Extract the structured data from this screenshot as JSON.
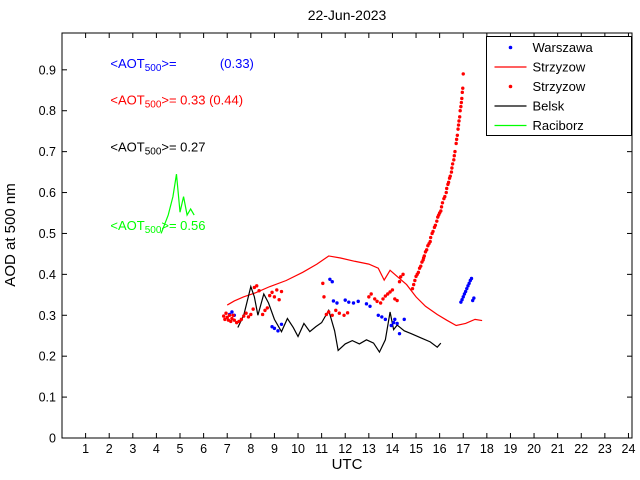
{
  "chart_data": {
    "type": "mixed",
    "title": "22-Jun-2023",
    "xlabel": "UTC",
    "ylabel": "AOD at 500 nm",
    "xlim": [
      0,
      24.15
    ],
    "ylim": [
      0,
      0.99
    ],
    "xticks": [
      1,
      2,
      3,
      4,
      5,
      6,
      7,
      8,
      9,
      10,
      11,
      12,
      13,
      14,
      15,
      16,
      17,
      18,
      19,
      20,
      21,
      22,
      23,
      24
    ],
    "yticks": [
      0,
      0.1,
      0.2,
      0.3,
      0.4,
      0.5,
      0.6,
      0.7,
      0.8,
      0.9
    ],
    "grid": false,
    "background": "#ffffff",
    "legend": {
      "position": "top-right",
      "entries": [
        {
          "label": "Warszawa",
          "style": "scatter",
          "color": "#0000ff"
        },
        {
          "label": "Strzyzow",
          "style": "line",
          "color": "#ff0000"
        },
        {
          "label": "Strzyzow",
          "style": "scatter",
          "color": "#ff0000"
        },
        {
          "label": "Belsk",
          "style": "line",
          "color": "#000000"
        },
        {
          "label": "Raciborz",
          "style": "line",
          "color": "#00ff00"
        }
      ]
    },
    "annotations": [
      {
        "name": "warszawa-mean",
        "color": "#0000ff",
        "x": 2.05,
        "y": 0.905,
        "pre": "<AOT",
        "sub": "500",
        "post": ">=            (0.33)"
      },
      {
        "name": "strzyzow-mean",
        "color": "#ff0000",
        "x": 2.05,
        "y": 0.815,
        "pre": "<AOT",
        "sub": "500",
        "post": ">= 0.33 (0.44)"
      },
      {
        "name": "belsk-mean",
        "color": "#000000",
        "x": 2.05,
        "y": 0.7,
        "pre": "<AOT",
        "sub": "500",
        "post": ">= 0.27"
      },
      {
        "name": "raciborz-mean",
        "color": "#00ff00",
        "x": 2.05,
        "y": 0.508,
        "pre": "<AOT",
        "sub": "500",
        "post": ">= 0.56"
      }
    ],
    "series": [
      {
        "name": "Raciborz",
        "type": "line",
        "color": "#00ff00",
        "points": [
          [
            4.2,
            0.5
          ],
          [
            4.5,
            0.545
          ],
          [
            4.7,
            0.59
          ],
          [
            4.85,
            0.645
          ],
          [
            5.0,
            0.552
          ],
          [
            5.15,
            0.59
          ],
          [
            5.3,
            0.545
          ],
          [
            5.45,
            0.56
          ],
          [
            5.6,
            0.545
          ]
        ]
      },
      {
        "name": "Strzyzow",
        "type": "line",
        "color": "#ff0000",
        "points": [
          [
            7.0,
            0.325
          ],
          [
            7.3,
            0.335
          ],
          [
            7.7,
            0.345
          ],
          [
            8.2,
            0.355
          ],
          [
            8.8,
            0.37
          ],
          [
            9.5,
            0.385
          ],
          [
            10.2,
            0.405
          ],
          [
            10.8,
            0.425
          ],
          [
            11.3,
            0.445
          ],
          [
            11.8,
            0.44
          ],
          [
            12.4,
            0.432
          ],
          [
            13.0,
            0.425
          ],
          [
            13.4,
            0.415
          ],
          [
            13.65,
            0.386
          ],
          [
            13.9,
            0.41
          ],
          [
            14.2,
            0.395
          ],
          [
            14.6,
            0.375
          ],
          [
            15.0,
            0.345
          ],
          [
            15.4,
            0.322
          ],
          [
            15.9,
            0.302
          ],
          [
            16.3,
            0.288
          ],
          [
            16.7,
            0.275
          ],
          [
            17.1,
            0.28
          ],
          [
            17.5,
            0.29
          ],
          [
            17.8,
            0.287
          ]
        ]
      },
      {
        "name": "Belsk",
        "type": "line",
        "color": "#000000",
        "points": [
          [
            7.45,
            0.27
          ],
          [
            7.7,
            0.3
          ],
          [
            8.0,
            0.37
          ],
          [
            8.15,
            0.345
          ],
          [
            8.3,
            0.3
          ],
          [
            8.55,
            0.352
          ],
          [
            8.75,
            0.33
          ],
          [
            9.0,
            0.29
          ],
          [
            9.3,
            0.26
          ],
          [
            9.55,
            0.292
          ],
          [
            9.8,
            0.27
          ],
          [
            10.0,
            0.248
          ],
          [
            10.25,
            0.28
          ],
          [
            10.5,
            0.26
          ],
          [
            10.75,
            0.272
          ],
          [
            11.0,
            0.282
          ],
          [
            11.3,
            0.312
          ],
          [
            11.55,
            0.262
          ],
          [
            11.7,
            0.214
          ],
          [
            12.0,
            0.23
          ],
          [
            12.3,
            0.238
          ],
          [
            12.6,
            0.23
          ],
          [
            12.9,
            0.24
          ],
          [
            13.2,
            0.232
          ],
          [
            13.45,
            0.21
          ],
          [
            13.7,
            0.24
          ],
          [
            13.9,
            0.308
          ],
          [
            14.05,
            0.265
          ],
          [
            14.2,
            0.276
          ],
          [
            14.5,
            0.262
          ],
          [
            14.8,
            0.255
          ],
          [
            15.2,
            0.245
          ],
          [
            15.6,
            0.235
          ],
          [
            15.9,
            0.222
          ],
          [
            16.05,
            0.232
          ]
        ]
      },
      {
        "name": "Warszawa",
        "type": "scatter",
        "color": "#0000ff",
        "points": [
          [
            7.1,
            0.302
          ],
          [
            7.2,
            0.308
          ],
          [
            7.3,
            0.3
          ],
          [
            8.9,
            0.272
          ],
          [
            9.0,
            0.268
          ],
          [
            9.15,
            0.262
          ],
          [
            9.3,
            0.278
          ],
          [
            11.35,
            0.388
          ],
          [
            11.45,
            0.382
          ],
          [
            11.5,
            0.335
          ],
          [
            11.65,
            0.33
          ],
          [
            12.0,
            0.337
          ],
          [
            12.15,
            0.332
          ],
          [
            12.35,
            0.33
          ],
          [
            12.55,
            0.334
          ],
          [
            12.9,
            0.328
          ],
          [
            13.05,
            0.322
          ],
          [
            13.4,
            0.3
          ],
          [
            13.55,
            0.296
          ],
          [
            13.7,
            0.29
          ],
          [
            13.95,
            0.275
          ],
          [
            14.05,
            0.282
          ],
          [
            14.1,
            0.29
          ],
          [
            14.2,
            0.28
          ],
          [
            14.3,
            0.255
          ],
          [
            14.5,
            0.29
          ],
          [
            16.9,
            0.332
          ],
          [
            16.95,
            0.338
          ],
          [
            17.0,
            0.345
          ],
          [
            17.05,
            0.352
          ],
          [
            17.1,
            0.358
          ],
          [
            17.15,
            0.365
          ],
          [
            17.2,
            0.372
          ],
          [
            17.25,
            0.378
          ],
          [
            17.3,
            0.385
          ],
          [
            17.35,
            0.39
          ],
          [
            17.4,
            0.336
          ],
          [
            17.45,
            0.342
          ]
        ]
      },
      {
        "name": "Strzyzow",
        "type": "scatter",
        "color": "#ff0000",
        "points": [
          [
            6.85,
            0.298
          ],
          [
            6.9,
            0.29
          ],
          [
            6.95,
            0.305
          ],
          [
            7.0,
            0.295
          ],
          [
            7.05,
            0.288
          ],
          [
            7.1,
            0.3
          ],
          [
            7.15,
            0.285
          ],
          [
            7.2,
            0.292
          ],
          [
            7.25,
            0.3
          ],
          [
            7.3,
            0.288
          ],
          [
            7.4,
            0.282
          ],
          [
            7.5,
            0.285
          ],
          [
            7.6,
            0.29
          ],
          [
            7.7,
            0.298
          ],
          [
            7.8,
            0.305
          ],
          [
            7.9,
            0.296
          ],
          [
            8.0,
            0.302
          ],
          [
            8.1,
            0.315
          ],
          [
            8.15,
            0.368
          ],
          [
            8.25,
            0.372
          ],
          [
            8.35,
            0.36
          ],
          [
            8.5,
            0.302
          ],
          [
            8.6,
            0.312
          ],
          [
            8.7,
            0.318
          ],
          [
            8.8,
            0.348
          ],
          [
            8.9,
            0.356
          ],
          [
            9.0,
            0.345
          ],
          [
            9.1,
            0.362
          ],
          [
            9.2,
            0.338
          ],
          [
            9.3,
            0.358
          ],
          [
            11.05,
            0.378
          ],
          [
            11.1,
            0.345
          ],
          [
            11.2,
            0.302
          ],
          [
            11.3,
            0.308
          ],
          [
            11.45,
            0.3
          ],
          [
            11.6,
            0.312
          ],
          [
            11.75,
            0.305
          ],
          [
            11.95,
            0.3
          ],
          [
            12.1,
            0.306
          ],
          [
            13.0,
            0.345
          ],
          [
            13.1,
            0.352
          ],
          [
            13.25,
            0.34
          ],
          [
            13.35,
            0.334
          ],
          [
            13.5,
            0.33
          ],
          [
            13.6,
            0.34
          ],
          [
            13.7,
            0.347
          ],
          [
            13.8,
            0.352
          ],
          [
            13.9,
            0.357
          ],
          [
            14.0,
            0.362
          ],
          [
            14.1,
            0.34
          ],
          [
            14.2,
            0.336
          ],
          [
            14.3,
            0.382
          ],
          [
            14.35,
            0.394
          ],
          [
            14.45,
            0.4
          ],
          [
            14.85,
            0.365
          ],
          [
            14.9,
            0.375
          ],
          [
            14.95,
            0.385
          ],
          [
            15.0,
            0.395
          ],
          [
            15.05,
            0.4
          ],
          [
            15.1,
            0.405
          ],
          [
            15.15,
            0.415
          ],
          [
            15.2,
            0.42
          ],
          [
            15.25,
            0.43
          ],
          [
            15.3,
            0.435
          ],
          [
            15.32,
            0.44
          ],
          [
            15.35,
            0.445
          ],
          [
            15.4,
            0.455
          ],
          [
            15.45,
            0.46
          ],
          [
            15.5,
            0.47
          ],
          [
            15.55,
            0.475
          ],
          [
            15.6,
            0.48
          ],
          [
            15.62,
            0.49
          ],
          [
            15.68,
            0.5
          ],
          [
            15.72,
            0.505
          ],
          [
            15.78,
            0.515
          ],
          [
            15.82,
            0.52
          ],
          [
            15.88,
            0.53
          ],
          [
            15.92,
            0.54
          ],
          [
            15.96,
            0.545
          ],
          [
            16.0,
            0.55
          ],
          [
            16.05,
            0.555
          ],
          [
            16.08,
            0.565
          ],
          [
            16.12,
            0.575
          ],
          [
            16.18,
            0.585
          ],
          [
            16.22,
            0.59
          ],
          [
            16.28,
            0.6
          ],
          [
            16.3,
            0.61
          ],
          [
            16.35,
            0.62
          ],
          [
            16.38,
            0.625
          ],
          [
            16.42,
            0.635
          ],
          [
            16.45,
            0.64
          ],
          [
            16.5,
            0.65
          ],
          [
            16.52,
            0.66
          ],
          [
            16.55,
            0.67
          ],
          [
            16.6,
            0.68
          ],
          [
            16.62,
            0.69
          ],
          [
            16.65,
            0.7
          ],
          [
            16.7,
            0.72
          ],
          [
            16.72,
            0.73
          ],
          [
            16.75,
            0.74
          ],
          [
            16.78,
            0.755
          ],
          [
            16.8,
            0.765
          ],
          [
            16.82,
            0.775
          ],
          [
            16.85,
            0.785
          ],
          [
            16.87,
            0.8
          ],
          [
            16.9,
            0.81
          ],
          [
            16.92,
            0.82
          ],
          [
            16.94,
            0.83
          ],
          [
            16.96,
            0.845
          ],
          [
            16.98,
            0.855
          ],
          [
            17.0,
            0.89
          ]
        ]
      }
    ]
  }
}
